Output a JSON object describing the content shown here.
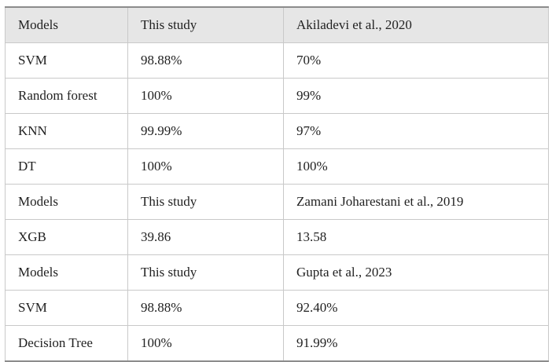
{
  "table": {
    "rows": [
      {
        "type": "header",
        "cells": [
          "Models",
          "This study",
          "Akiladevi et al., 2020"
        ]
      },
      {
        "type": "data",
        "cells": [
          "SVM",
          "98.88%",
          "70%"
        ]
      },
      {
        "type": "data",
        "cells": [
          "Random forest",
          "100%",
          "99%"
        ]
      },
      {
        "type": "data",
        "cells": [
          "KNN",
          "99.99%",
          "97%"
        ]
      },
      {
        "type": "data",
        "cells": [
          "DT",
          "100%",
          "100%"
        ]
      },
      {
        "type": "subheader",
        "cells": [
          "Models",
          "This study",
          "Zamani Joharestani et al., 2019"
        ]
      },
      {
        "type": "data",
        "cells": [
          "XGB",
          "39.86",
          "13.58"
        ]
      },
      {
        "type": "subheader",
        "cells": [
          "Models",
          "This study",
          "Gupta et al., 2023"
        ]
      },
      {
        "type": "data",
        "cells": [
          "SVM",
          "98.88%",
          "92.40%"
        ]
      },
      {
        "type": "data",
        "cells": [
          "Decision Tree",
          "100%",
          "91.99%"
        ]
      }
    ]
  },
  "colors": {
    "header_bg": "#e6e6e6",
    "citation_link": "#6b63c8",
    "text": "#222222"
  }
}
